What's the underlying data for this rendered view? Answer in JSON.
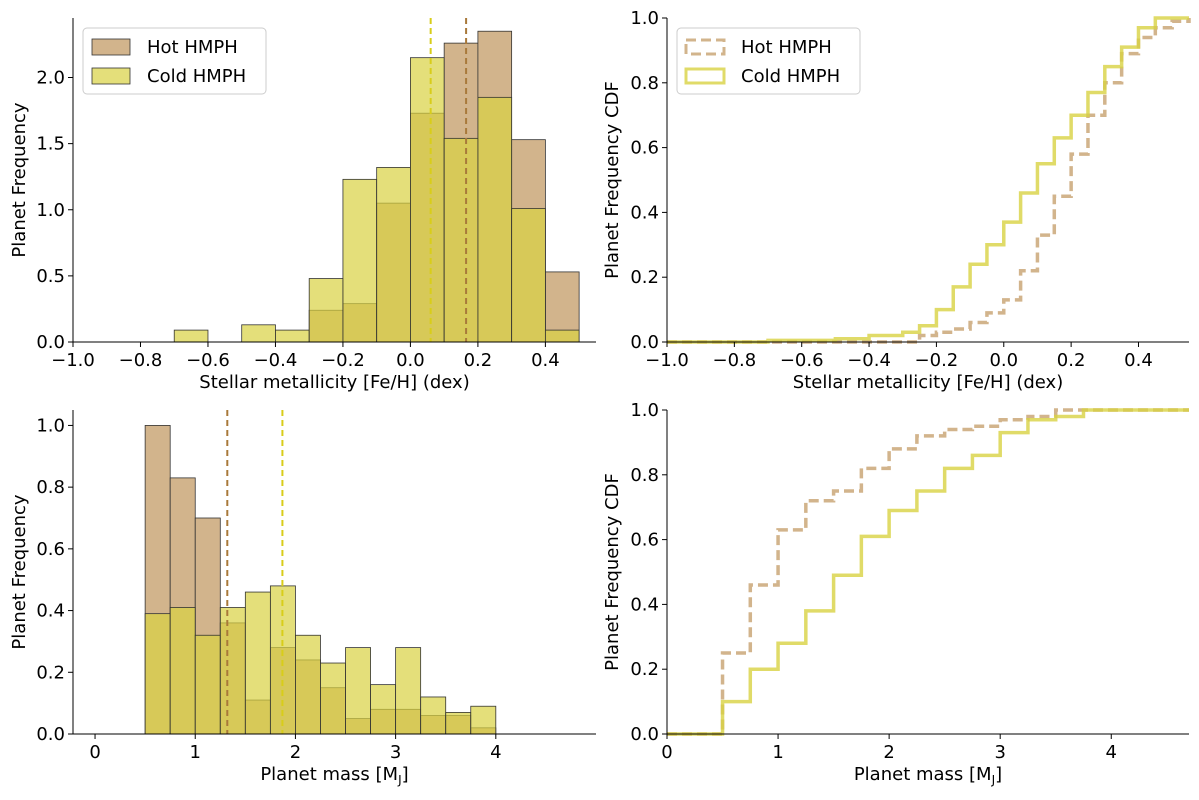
{
  "colors": {
    "hot": "#d2b48c",
    "cold": "#d8d242",
    "hot_median": "#a8793a",
    "cold_median": "#d8cd1a",
    "edge": "#333333"
  },
  "chart_data": [
    {
      "type": "bar",
      "title": "",
      "xlabel": "Stellar metallicity [Fe/H] (dex)",
      "ylabel": "Planet Frequency",
      "xlim": [
        -1.0,
        0.55
      ],
      "ylim": [
        0,
        2.45
      ],
      "xticks": [
        "−1.0",
        "−0.8",
        "−0.6",
        "−0.4",
        "−0.2",
        "0.0",
        "0.2",
        "0.4"
      ],
      "yticks": [
        "0.0",
        "0.5",
        "1.0",
        "1.5",
        "2.0"
      ],
      "legend": {
        "placement": "top-left",
        "entries": [
          "Hot HMPH",
          "Cold HMPH"
        ]
      },
      "bin_edges": [
        -0.7,
        -0.6,
        -0.5,
        -0.4,
        -0.3,
        -0.2,
        -0.1,
        0.0,
        0.1,
        0.2,
        0.3,
        0.4,
        0.5
      ],
      "series": [
        {
          "name": "Hot HMPH",
          "values": [
            0,
            0,
            0,
            0,
            0.24,
            0.29,
            1.05,
            1.73,
            2.26,
            2.35,
            1.53,
            0.53
          ],
          "median": 0.165
        },
        {
          "name": "Cold HMPH",
          "values": [
            0.09,
            0,
            0.13,
            0.09,
            0.48,
            1.23,
            1.32,
            2.15,
            1.54,
            1.85,
            1.01,
            0.09
          ],
          "median": 0.06
        }
      ]
    },
    {
      "type": "line",
      "title": "",
      "xlabel": "Stellar metallicity [Fe/H] (dex)",
      "ylabel": "Planet Frequency CDF",
      "xlim": [
        -1.0,
        0.55
      ],
      "ylim": [
        0,
        1.0
      ],
      "xticks": [
        "−1.0",
        "−0.8",
        "−0.6",
        "−0.4",
        "−0.2",
        "0.0",
        "0.2",
        "0.4"
      ],
      "yticks": [
        "0.0",
        "0.2",
        "0.4",
        "0.6",
        "0.8",
        "1.0"
      ],
      "legend": {
        "placement": "top-left",
        "entries": [
          "Hot HMPH",
          "Cold HMPH"
        ]
      },
      "series": [
        {
          "name": "Hot HMPH",
          "style": "dashed",
          "x": [
            -1.0,
            -0.3,
            -0.25,
            -0.2,
            -0.15,
            -0.1,
            -0.05,
            0.0,
            0.05,
            0.1,
            0.15,
            0.2,
            0.25,
            0.3,
            0.35,
            0.4,
            0.45,
            0.5,
            0.55
          ],
          "y": [
            0.0,
            0.0,
            0.02,
            0.03,
            0.04,
            0.06,
            0.09,
            0.13,
            0.22,
            0.33,
            0.45,
            0.58,
            0.7,
            0.8,
            0.89,
            0.94,
            0.97,
            0.99,
            1.0
          ]
        },
        {
          "name": "Cold HMPH",
          "style": "solid",
          "x": [
            -1.0,
            -0.7,
            -0.5,
            -0.4,
            -0.3,
            -0.25,
            -0.2,
            -0.15,
            -0.1,
            -0.05,
            0.0,
            0.05,
            0.1,
            0.15,
            0.2,
            0.25,
            0.3,
            0.35,
            0.4,
            0.45,
            0.55
          ],
          "y": [
            0.0,
            0.005,
            0.01,
            0.02,
            0.03,
            0.05,
            0.1,
            0.17,
            0.24,
            0.3,
            0.37,
            0.46,
            0.55,
            0.63,
            0.7,
            0.77,
            0.85,
            0.91,
            0.97,
            1.0,
            1.0
          ]
        }
      ]
    },
    {
      "type": "bar",
      "title": "",
      "xlabel": "Planet mass [M",
      "xlabel_sub": "J",
      "xlabel_end": "]",
      "ylabel": "Planet Frequency",
      "xlim": [
        -0.22,
        5.0
      ],
      "ylim": [
        0,
        1.05
      ],
      "xticks": [
        "0",
        "1",
        "2",
        "3",
        "4"
      ],
      "yticks": [
        "0.0",
        "0.2",
        "0.4",
        "0.6",
        "0.8",
        "1.0"
      ],
      "bin_edges": [
        0.5,
        0.75,
        1.0,
        1.25,
        1.5,
        1.75,
        2.0,
        2.25,
        2.5,
        2.75,
        3.0,
        3.25,
        3.5,
        3.75,
        4.0
      ],
      "series": [
        {
          "name": "Hot HMPH",
          "values": [
            1.0,
            0.83,
            0.7,
            0.36,
            0.11,
            0.28,
            0.24,
            0.15,
            0.05,
            0.08,
            0.08,
            0.06,
            0.06,
            0.02
          ],
          "median": 1.32
        },
        {
          "name": "Cold HMPH",
          "values": [
            0.39,
            0.41,
            0.32,
            0.41,
            0.46,
            0.48,
            0.32,
            0.23,
            0.28,
            0.16,
            0.28,
            0.12,
            0.07,
            0.09
          ],
          "median": 1.87
        }
      ]
    },
    {
      "type": "line",
      "title": "",
      "xlabel": "Planet mass [M",
      "xlabel_sub": "J",
      "xlabel_end": "]",
      "ylabel": "Planet Frequency CDF",
      "xlim": [
        0,
        4.7
      ],
      "ylim": [
        0,
        1.0
      ],
      "xticks": [
        "0",
        "1",
        "2",
        "3",
        "4"
      ],
      "yticks": [
        "0.0",
        "0.2",
        "0.4",
        "0.6",
        "0.8",
        "1.0"
      ],
      "series": [
        {
          "name": "Hot HMPH",
          "style": "dashed",
          "x": [
            0.0,
            0.5,
            0.75,
            1.0,
            1.25,
            1.5,
            1.75,
            2.0,
            2.25,
            2.5,
            2.75,
            3.0,
            3.25,
            3.5,
            3.75,
            4.0,
            4.7
          ],
          "y": [
            0.0,
            0.25,
            0.46,
            0.63,
            0.72,
            0.75,
            0.82,
            0.88,
            0.92,
            0.94,
            0.95,
            0.97,
            0.98,
            1.0,
            1.0,
            1.0,
            1.0
          ]
        },
        {
          "name": "Cold HMPH",
          "style": "solid",
          "x": [
            0.0,
            0.5,
            0.75,
            1.0,
            1.25,
            1.5,
            1.75,
            2.0,
            2.25,
            2.5,
            2.75,
            3.0,
            3.25,
            3.5,
            3.75,
            4.0,
            4.7
          ],
          "y": [
            0.0,
            0.1,
            0.2,
            0.28,
            0.38,
            0.49,
            0.61,
            0.69,
            0.75,
            0.82,
            0.86,
            0.93,
            0.97,
            0.98,
            1.0,
            1.0,
            1.0
          ]
        }
      ]
    }
  ]
}
